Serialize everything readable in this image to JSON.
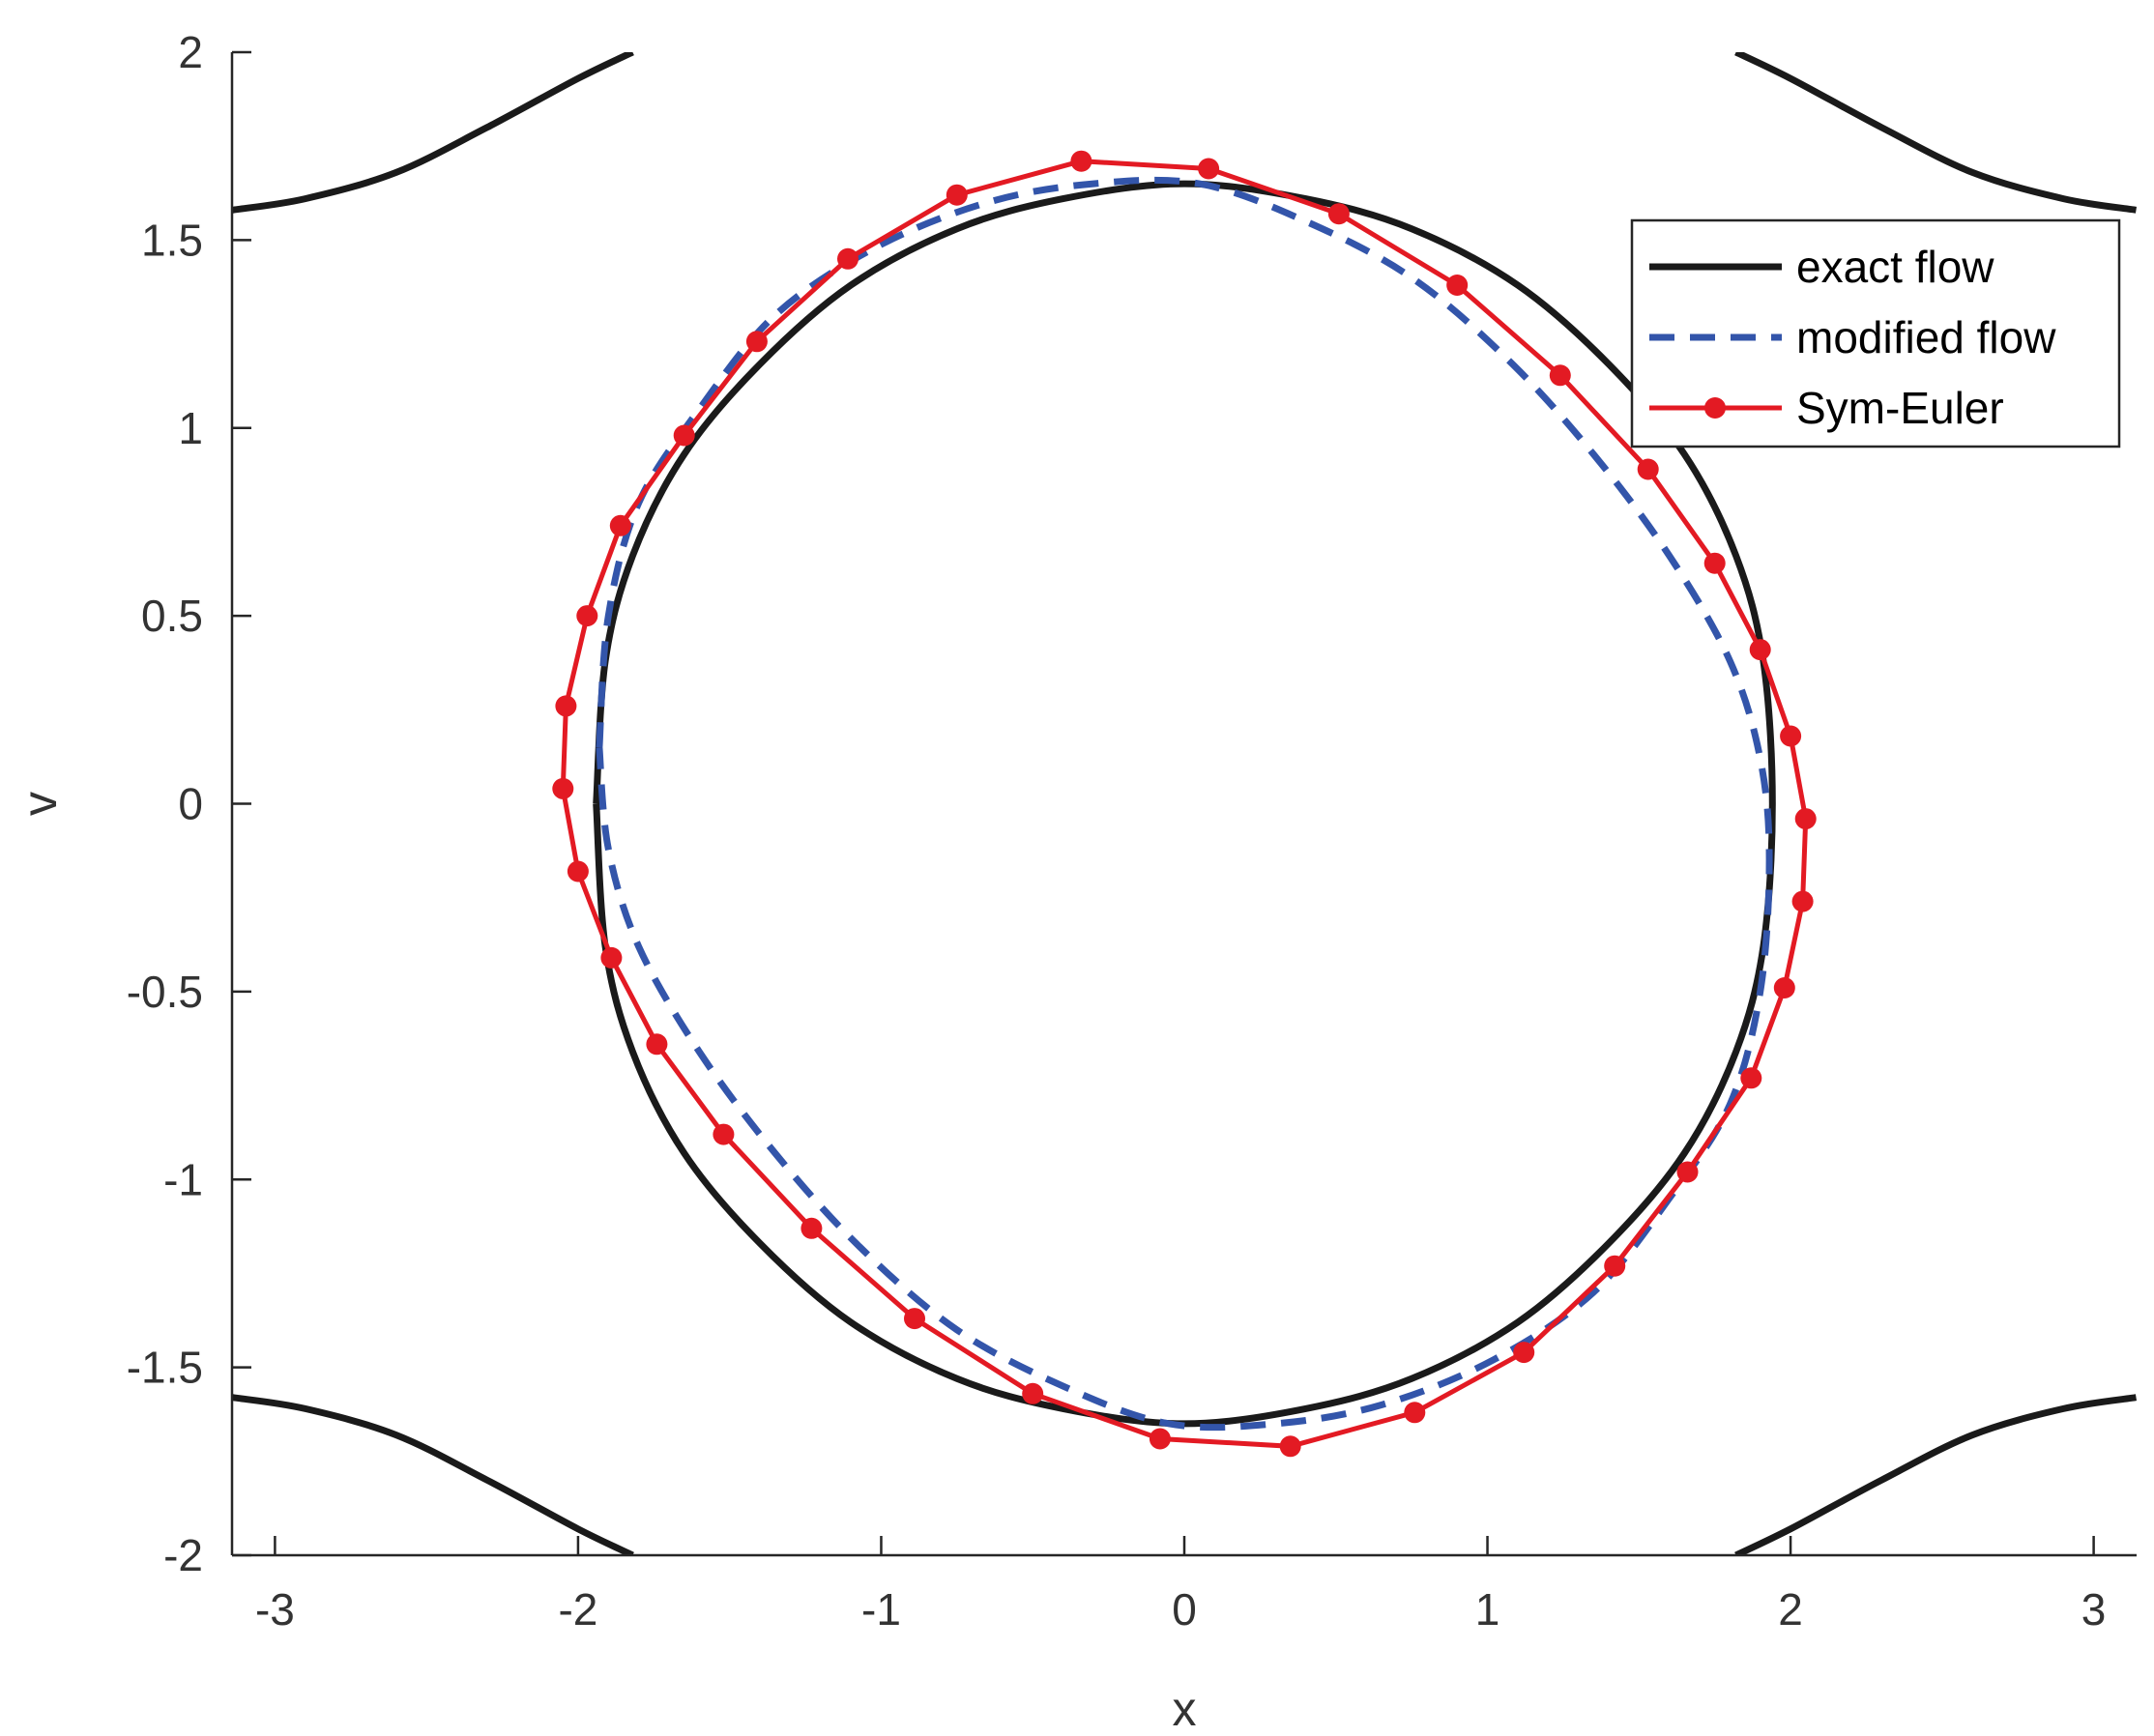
{
  "chart_data": {
    "type": "line",
    "xlabel": "x",
    "ylabel": "v",
    "xlim": [
      -3.14159,
      3.14159
    ],
    "ylim": [
      -2,
      2
    ],
    "x_ticks": [
      -3,
      -2,
      -1,
      0,
      1,
      2,
      3
    ],
    "x_tick_labels": [
      "-3",
      "-2",
      "-1",
      "0",
      "1",
      "2",
      "3"
    ],
    "y_ticks": [
      -2,
      -1.5,
      -1,
      -0.5,
      0,
      0.5,
      1,
      1.5,
      2
    ],
    "y_tick_labels": [
      "-2",
      "-1.5",
      "-1",
      "-0.5",
      "0",
      "0.5",
      "1",
      "1.5",
      "2"
    ],
    "grid": false,
    "legend_position": "top-right",
    "series": [
      {
        "name": "exact flow",
        "style": "solid",
        "color": "#1a1a1a",
        "description": "level set v^2/2 - cos(x) = 0.36 plus separatrix arcs at the corners",
        "closed_orbit": {
          "x": [
            -1.94,
            -1.91,
            -1.82,
            -1.65,
            -1.4,
            -1.1,
            -0.75,
            -0.4,
            0.0,
            0.4,
            0.75,
            1.1,
            1.4,
            1.65,
            1.82,
            1.91,
            1.94,
            1.91,
            1.82,
            1.65,
            1.4,
            1.1,
            0.75,
            0.4,
            0.0,
            -0.4,
            -0.75,
            -1.1,
            -1.4,
            -1.65,
            -1.82,
            -1.91,
            -1.94
          ],
          "y": [
            0.0,
            0.38,
            0.66,
            0.93,
            1.17,
            1.38,
            1.53,
            1.61,
            1.65,
            1.61,
            1.53,
            1.38,
            1.17,
            0.93,
            0.66,
            0.38,
            0.0,
            -0.38,
            -0.66,
            -0.93,
            -1.17,
            -1.38,
            -1.53,
            -1.61,
            -1.65,
            -1.61,
            -1.53,
            -1.38,
            -1.17,
            -0.93,
            -0.66,
            -0.38,
            0.0
          ]
        },
        "outer_arcs": [
          {
            "x": [
              -3.14,
              -2.9,
              -2.6,
              -2.3,
              -2.0,
              -1.82
            ],
            "y": [
              1.58,
              1.61,
              1.68,
              1.8,
              1.93,
              2.0
            ]
          },
          {
            "x": [
              1.82,
              2.0,
              2.3,
              2.6,
              2.9,
              3.14
            ],
            "y": [
              2.0,
              1.93,
              1.8,
              1.68,
              1.61,
              1.58
            ]
          },
          {
            "x": [
              -3.14,
              -2.9,
              -2.6,
              -2.3,
              -2.0,
              -1.82
            ],
            "y": [
              -1.58,
              -1.61,
              -1.68,
              -1.8,
              -1.93,
              -2.0
            ]
          },
          {
            "x": [
              1.82,
              2.0,
              2.3,
              2.6,
              2.9,
              3.14
            ],
            "y": [
              -2.0,
              -1.93,
              -1.8,
              -1.68,
              -1.61,
              -1.58
            ]
          }
        ]
      },
      {
        "name": "modified flow",
        "style": "dashed",
        "color": "#3355aa",
        "x": [
          -1.93,
          -1.9,
          -1.8,
          -1.6,
          -1.35,
          -1.02,
          -0.65,
          -0.3,
          0.05,
          0.4,
          0.75,
          1.07,
          1.35,
          1.6,
          1.8,
          1.9,
          1.93,
          1.9,
          1.8,
          1.6,
          1.35,
          1.02,
          0.65,
          0.3,
          -0.05,
          -0.4,
          -0.75,
          -1.07,
          -1.35,
          -1.6,
          -1.8,
          -1.9,
          -1.93
        ],
        "y": [
          0.15,
          0.5,
          0.8,
          1.05,
          1.3,
          1.48,
          1.6,
          1.65,
          1.65,
          1.55,
          1.4,
          1.18,
          0.93,
          0.66,
          0.38,
          0.12,
          -0.15,
          -0.5,
          -0.8,
          -1.05,
          -1.3,
          -1.48,
          -1.6,
          -1.65,
          -1.65,
          -1.55,
          -1.4,
          -1.18,
          -0.93,
          -0.66,
          -0.38,
          -0.12,
          0.15
        ]
      },
      {
        "name": "Sym-Euler",
        "style": "solid-markers",
        "color": "#e31a23",
        "x": [
          0.08,
          0.51,
          0.9,
          1.24,
          1.53,
          1.75,
          1.9,
          2.0,
          2.05,
          2.04,
          1.98,
          1.87,
          1.66,
          1.42,
          1.12,
          0.76,
          0.35,
          -0.08,
          -0.5,
          -0.89,
          -1.23,
          -1.52,
          -1.74,
          -1.89,
          -2.0,
          -2.05,
          -2.04,
          -1.97,
          -1.86,
          -1.65,
          -1.41,
          -1.11,
          -0.75,
          -0.34,
          0.08
        ],
        "y": [
          1.69,
          1.57,
          1.38,
          1.14,
          0.89,
          0.64,
          0.41,
          0.18,
          -0.04,
          -0.26,
          -0.49,
          -0.73,
          -0.98,
          -1.23,
          -1.46,
          -1.62,
          -1.71,
          -1.69,
          -1.57,
          -1.37,
          -1.13,
          -0.88,
          -0.64,
          -0.41,
          -0.18,
          0.04,
          0.26,
          0.5,
          0.74,
          0.98,
          1.23,
          1.45,
          1.62,
          1.71,
          1.69
        ]
      }
    ]
  }
}
